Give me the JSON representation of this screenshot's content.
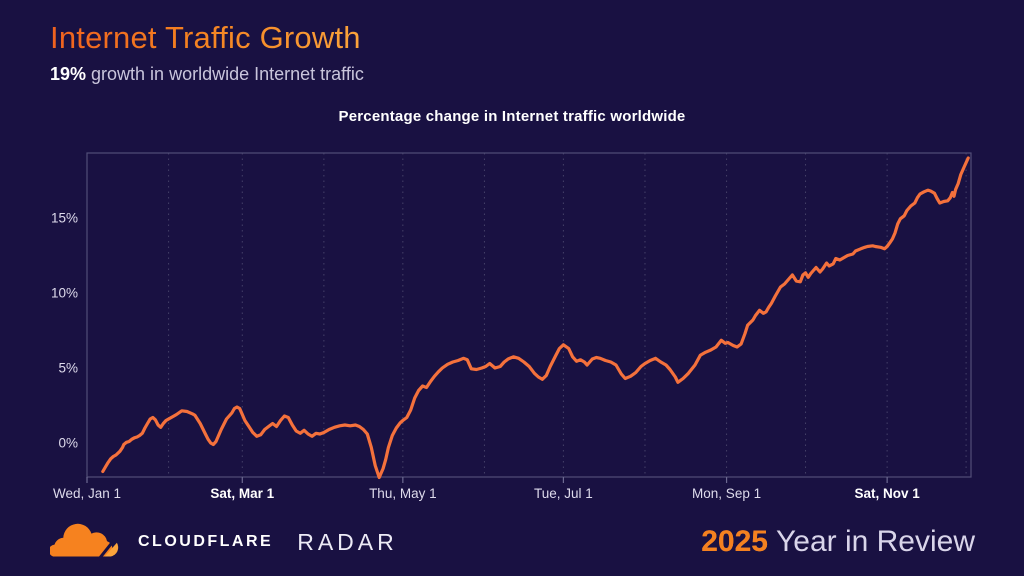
{
  "header": {
    "title": "Internet Traffic Growth",
    "subtitle_value": "19%",
    "subtitle_rest": " growth in worldwide Internet traffic"
  },
  "chart_data": {
    "type": "line",
    "title": "Percentage change in Internet traffic worldwide",
    "series_name": "Percentage change in Internet traffic worldwide",
    "x_axis": "date (2025, day of year)",
    "y_axis": "percent change",
    "ylim": [
      -2.6,
      19.5
    ],
    "xlim_days": [
      0,
      336
    ],
    "grid": "vertical-dashed-monthly",
    "legend": "none",
    "y_ticks": [
      {
        "value": 0,
        "label": "0%"
      },
      {
        "value": 5,
        "label": "5%"
      },
      {
        "value": 10,
        "label": "10%"
      },
      {
        "value": 15,
        "label": "15%"
      }
    ],
    "x_ticks": [
      {
        "day": 0,
        "label": "Wed, Jan 1",
        "bold": false
      },
      {
        "day": 59,
        "label": "Sat, Mar 1",
        "bold": true
      },
      {
        "day": 120,
        "label": "Thu, May 1",
        "bold": false
      },
      {
        "day": 181,
        "label": "Tue, Jul 1",
        "bold": false
      },
      {
        "day": 243,
        "label": "Mon, Sep 1",
        "bold": false
      },
      {
        "day": 304,
        "label": "Sat, Nov 1",
        "bold": true
      }
    ],
    "month_gridline_days": [
      31,
      59,
      90,
      120,
      151,
      181,
      212,
      243,
      273,
      304,
      334
    ],
    "points": [
      [
        6,
        -1.9
      ],
      [
        7,
        -1.6
      ],
      [
        8,
        -1.3
      ],
      [
        9,
        -1.05
      ],
      [
        10,
        -0.9
      ],
      [
        11,
        -0.8
      ],
      [
        12.5,
        -0.55
      ],
      [
        13.5,
        -0.3
      ],
      [
        14,
        -0.1
      ],
      [
        15,
        0.05
      ],
      [
        16,
        0.1
      ],
      [
        17,
        0.25
      ],
      [
        18,
        0.35
      ],
      [
        19,
        0.4
      ],
      [
        20,
        0.5
      ],
      [
        21,
        0.65
      ],
      [
        22,
        1.0
      ],
      [
        23,
        1.3
      ],
      [
        24,
        1.6
      ],
      [
        25,
        1.7
      ],
      [
        26,
        1.55
      ],
      [
        27,
        1.2
      ],
      [
        28,
        1.05
      ],
      [
        29,
        1.3
      ],
      [
        30,
        1.5
      ],
      [
        31,
        1.6
      ],
      [
        33,
        1.8
      ],
      [
        34,
        1.9
      ],
      [
        36,
        2.15
      ],
      [
        38,
        2.1
      ],
      [
        40,
        1.95
      ],
      [
        41,
        1.85
      ],
      [
        43,
        1.3
      ],
      [
        45,
        0.6
      ],
      [
        46,
        0.25
      ],
      [
        47,
        0.0
      ],
      [
        48,
        -0.1
      ],
      [
        49,
        0.1
      ],
      [
        51,
        0.9
      ],
      [
        53,
        1.6
      ],
      [
        55,
        2.0
      ],
      [
        56,
        2.3
      ],
      [
        57,
        2.4
      ],
      [
        58,
        2.3
      ],
      [
        59,
        1.9
      ],
      [
        60,
        1.5
      ],
      [
        61.5,
        1.1
      ],
      [
        63,
        0.7
      ],
      [
        64.5,
        0.45
      ],
      [
        66,
        0.55
      ],
      [
        67.5,
        0.9
      ],
      [
        69,
        1.1
      ],
      [
        70.5,
        1.3
      ],
      [
        72,
        1.1
      ],
      [
        73.5,
        1.5
      ],
      [
        75,
        1.8
      ],
      [
        76.5,
        1.7
      ],
      [
        78,
        1.2
      ],
      [
        79.5,
        0.8
      ],
      [
        81,
        0.65
      ],
      [
        82.5,
        0.85
      ],
      [
        84,
        0.6
      ],
      [
        85.5,
        0.45
      ],
      [
        87,
        0.65
      ],
      [
        88.5,
        0.6
      ],
      [
        90,
        0.7
      ],
      [
        92,
        0.9
      ],
      [
        94,
        1.05
      ],
      [
        96,
        1.15
      ],
      [
        98,
        1.2
      ],
      [
        100,
        1.15
      ],
      [
        102,
        1.2
      ],
      [
        103.5,
        1.1
      ],
      [
        105,
        0.9
      ],
      [
        106.5,
        0.6
      ],
      [
        108,
        -0.3
      ],
      [
        109.5,
        -1.5
      ],
      [
        111,
        -2.3
      ],
      [
        112.5,
        -1.7
      ],
      [
        113.5,
        -1.1
      ],
      [
        114.5,
        -0.3
      ],
      [
        116,
        0.5
      ],
      [
        117.5,
        1.0
      ],
      [
        119,
        1.35
      ],
      [
        120,
        1.5
      ],
      [
        121.5,
        1.7
      ],
      [
        123,
        2.2
      ],
      [
        124.5,
        3.0
      ],
      [
        126,
        3.5
      ],
      [
        127.5,
        3.8
      ],
      [
        129,
        3.7
      ],
      [
        130.5,
        4.1
      ],
      [
        132,
        4.45
      ],
      [
        133.5,
        4.75
      ],
      [
        135,
        5.0
      ],
      [
        137,
        5.25
      ],
      [
        139,
        5.4
      ],
      [
        141,
        5.5
      ],
      [
        143,
        5.65
      ],
      [
        144.5,
        5.55
      ],
      [
        146,
        4.95
      ],
      [
        148,
        4.9
      ],
      [
        150,
        5.0
      ],
      [
        151.5,
        5.1
      ],
      [
        153,
        5.3
      ],
      [
        155,
        5.0
      ],
      [
        157,
        5.1
      ],
      [
        158.5,
        5.4
      ],
      [
        160,
        5.6
      ],
      [
        162,
        5.75
      ],
      [
        164,
        5.65
      ],
      [
        166,
        5.4
      ],
      [
        168,
        5.1
      ],
      [
        170,
        4.65
      ],
      [
        171.5,
        4.4
      ],
      [
        173,
        4.25
      ],
      [
        174.5,
        4.5
      ],
      [
        176,
        5.1
      ],
      [
        178,
        5.8
      ],
      [
        179.5,
        6.3
      ],
      [
        181,
        6.55
      ],
      [
        183,
        6.3
      ],
      [
        184.5,
        5.75
      ],
      [
        186,
        5.45
      ],
      [
        187.5,
        5.55
      ],
      [
        189,
        5.4
      ],
      [
        190,
        5.2
      ],
      [
        192,
        5.6
      ],
      [
        193.5,
        5.7
      ],
      [
        195,
        5.65
      ],
      [
        197,
        5.5
      ],
      [
        199,
        5.4
      ],
      [
        201,
        5.2
      ],
      [
        203,
        4.6
      ],
      [
        204.5,
        4.3
      ],
      [
        206.5,
        4.45
      ],
      [
        208.5,
        4.7
      ],
      [
        210.5,
        5.1
      ],
      [
        212,
        5.3
      ],
      [
        214,
        5.5
      ],
      [
        216,
        5.65
      ],
      [
        218,
        5.4
      ],
      [
        220,
        5.2
      ],
      [
        221.5,
        4.9
      ],
      [
        223.5,
        4.4
      ],
      [
        224.5,
        4.05
      ],
      [
        226.5,
        4.3
      ],
      [
        228.5,
        4.65
      ],
      [
        231,
        5.2
      ],
      [
        233,
        5.85
      ],
      [
        235,
        6.05
      ],
      [
        237,
        6.2
      ],
      [
        239,
        6.4
      ],
      [
        241,
        6.85
      ],
      [
        242.5,
        6.65
      ],
      [
        243.5,
        6.7
      ],
      [
        245.5,
        6.5
      ],
      [
        247,
        6.4
      ],
      [
        248.5,
        6.6
      ],
      [
        250,
        7.3
      ],
      [
        251,
        7.85
      ],
      [
        253,
        8.2
      ],
      [
        254,
        8.5
      ],
      [
        255.5,
        8.85
      ],
      [
        257,
        8.65
      ],
      [
        258,
        8.75
      ],
      [
        259,
        9.05
      ],
      [
        260,
        9.3
      ],
      [
        261.5,
        9.8
      ],
      [
        263.5,
        10.4
      ],
      [
        265,
        10.6
      ],
      [
        267,
        11.0
      ],
      [
        268,
        11.2
      ],
      [
        269.5,
        10.8
      ],
      [
        271,
        10.75
      ],
      [
        272,
        11.2
      ],
      [
        273,
        11.35
      ],
      [
        274,
        11.05
      ],
      [
        275,
        11.3
      ],
      [
        276,
        11.5
      ],
      [
        277,
        11.7
      ],
      [
        278.5,
        11.4
      ],
      [
        279.5,
        11.6
      ],
      [
        281,
        12.0
      ],
      [
        282,
        11.8
      ],
      [
        283.5,
        11.95
      ],
      [
        284.5,
        12.3
      ],
      [
        286,
        12.2
      ],
      [
        288,
        12.4
      ],
      [
        289,
        12.5
      ],
      [
        291,
        12.6
      ],
      [
        292,
        12.8
      ],
      [
        294,
        12.95
      ],
      [
        295.5,
        13.05
      ],
      [
        296.5,
        13.1
      ],
      [
        298.5,
        13.15
      ],
      [
        299.5,
        13.1
      ],
      [
        301.5,
        13.05
      ],
      [
        303,
        12.95
      ],
      [
        304,
        13.1
      ],
      [
        305,
        13.35
      ],
      [
        306,
        13.6
      ],
      [
        307,
        14.0
      ],
      [
        308,
        14.6
      ],
      [
        309,
        14.95
      ],
      [
        310.5,
        15.15
      ],
      [
        311.5,
        15.5
      ],
      [
        313,
        15.8
      ],
      [
        314.5,
        16.0
      ],
      [
        315.5,
        16.35
      ],
      [
        316.5,
        16.6
      ],
      [
        318,
        16.75
      ],
      [
        319.5,
        16.85
      ],
      [
        320.5,
        16.8
      ],
      [
        322,
        16.65
      ],
      [
        323,
        16.3
      ],
      [
        324,
        16.0
      ],
      [
        325.5,
        16.1
      ],
      [
        327,
        16.15
      ],
      [
        328,
        16.35
      ],
      [
        328.8,
        16.7
      ],
      [
        329.4,
        16.45
      ],
      [
        330,
        16.9
      ],
      [
        331,
        17.3
      ],
      [
        332,
        17.9
      ],
      [
        333.5,
        18.5
      ],
      [
        334.8,
        19.0
      ]
    ]
  },
  "footer": {
    "brand": "CLOUDFLARE",
    "product": "RADAR",
    "year": "2025",
    "tagline": "Year in Review"
  },
  "colors": {
    "background": "#191142",
    "line": "#f4713c",
    "accent_orange": "#f48120",
    "accent_orange_light": "#fba43b",
    "grid": "#454168",
    "axis": "#524e78",
    "tick": "#6d6a92",
    "text_primary": "#ffffff",
    "text_secondary": "#c9c5dc",
    "axis_label": "#dedbec"
  }
}
